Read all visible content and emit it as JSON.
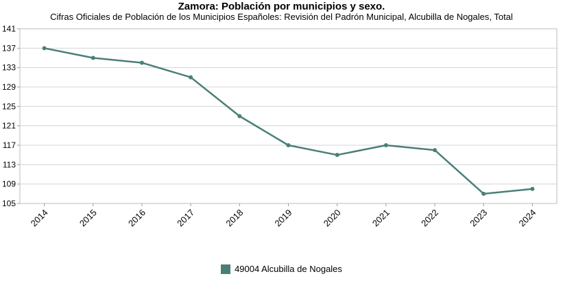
{
  "chart_data": {
    "type": "line",
    "title": "Zamora: Población por municipios y sexo.",
    "subtitle": "Cifras Oficiales de Población de los Municipios Españoles: Revisión del Padrón Municipal, Alcubilla de Nogales, Total",
    "categories": [
      "2014",
      "2015",
      "2016",
      "2017",
      "2018",
      "2019",
      "2020",
      "2021",
      "2022",
      "2023",
      "2024"
    ],
    "series": [
      {
        "name": "49004 Alcubilla de Nogales",
        "values": [
          137,
          135,
          134,
          131,
          123,
          117,
          115,
          117,
          116,
          107,
          108
        ],
        "color": "#4a7f77"
      }
    ],
    "ylim": [
      105,
      141
    ],
    "yticks": [
      105,
      109,
      113,
      117,
      121,
      125,
      129,
      133,
      137,
      141
    ],
    "grid": true,
    "legend_position": "bottom"
  }
}
